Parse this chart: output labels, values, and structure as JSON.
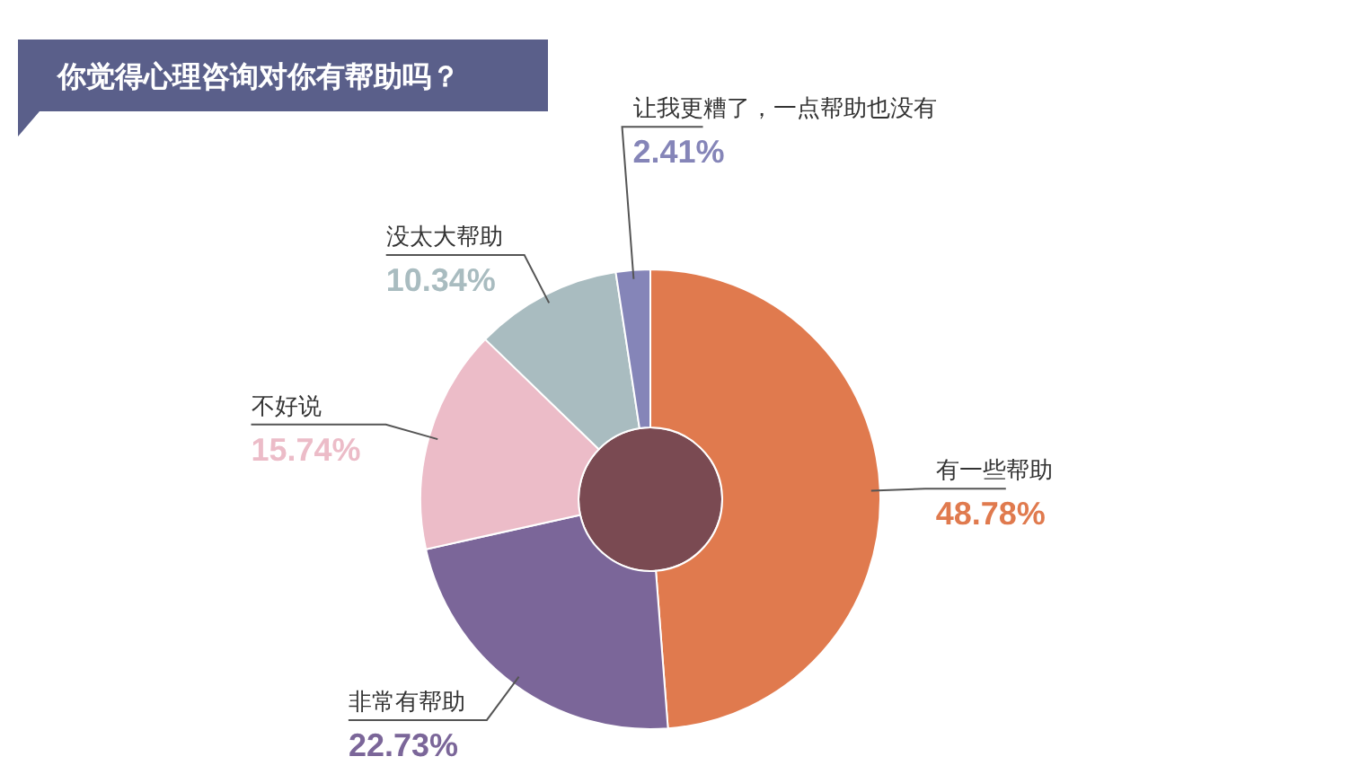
{
  "chart_data": {
    "type": "donut",
    "title": "你觉得心理咨询对你有帮助吗？",
    "categories": [
      "有一些帮助",
      "非常有帮助",
      "不好说",
      "没太大帮助",
      "让我更糟了，一点帮助也没有"
    ],
    "values": [
      48.78,
      22.73,
      15.74,
      10.34,
      2.41
    ],
    "value_labels": [
      "48.78%",
      "22.73%",
      "15.74%",
      "10.34%",
      "2.41%"
    ],
    "colors": [
      "#e07a4e",
      "#7b6699",
      "#ecbcc8",
      "#a9bcc0",
      "#8585b8"
    ],
    "legend": false
  }
}
